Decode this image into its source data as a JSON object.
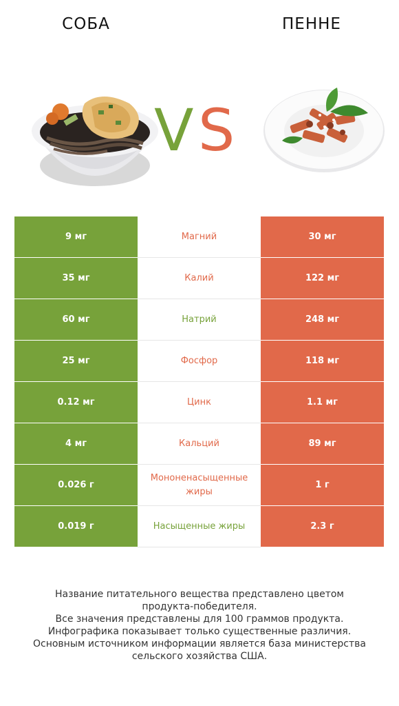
{
  "header": {
    "left_name": "СОБА",
    "right_name": "ПЕННЕ",
    "vs_v": "V",
    "vs_s": "S"
  },
  "colors": {
    "left": "#77a23a",
    "right": "#e1694a"
  },
  "rows": [
    {
      "left": "9 мг",
      "nutrient": "Магний",
      "right": "30 мг",
      "winner": "right"
    },
    {
      "left": "35 мг",
      "nutrient": "Калий",
      "right": "122 мг",
      "winner": "right"
    },
    {
      "left": "60 мг",
      "nutrient": "Натрий",
      "right": "248 мг",
      "winner": "left"
    },
    {
      "left": "25 мг",
      "nutrient": "Фосфор",
      "right": "118 мг",
      "winner": "right"
    },
    {
      "left": "0.12 мг",
      "nutrient": "Цинк",
      "right": "1.1 мг",
      "winner": "right"
    },
    {
      "left": "4 мг",
      "nutrient": "Кальций",
      "right": "89 мг",
      "winner": "right"
    },
    {
      "left": "0.026 г",
      "nutrient": "Мононенасыщенные жиры",
      "right": "1 г",
      "winner": "right"
    },
    {
      "left": "0.019 г",
      "nutrient": "Насыщенные жиры",
      "right": "2.3 г",
      "winner": "left"
    }
  ],
  "footer": {
    "line1": "Название питательного вещества представлено цветом",
    "line2": "продукта-победителя.",
    "line3": "Все значения представлены для 100 граммов продукта.",
    "line4": "Инфографика показывает только существенные различия.",
    "line5": "Основным источником информации является база министерства",
    "line6": "сельского хозяйства США."
  }
}
